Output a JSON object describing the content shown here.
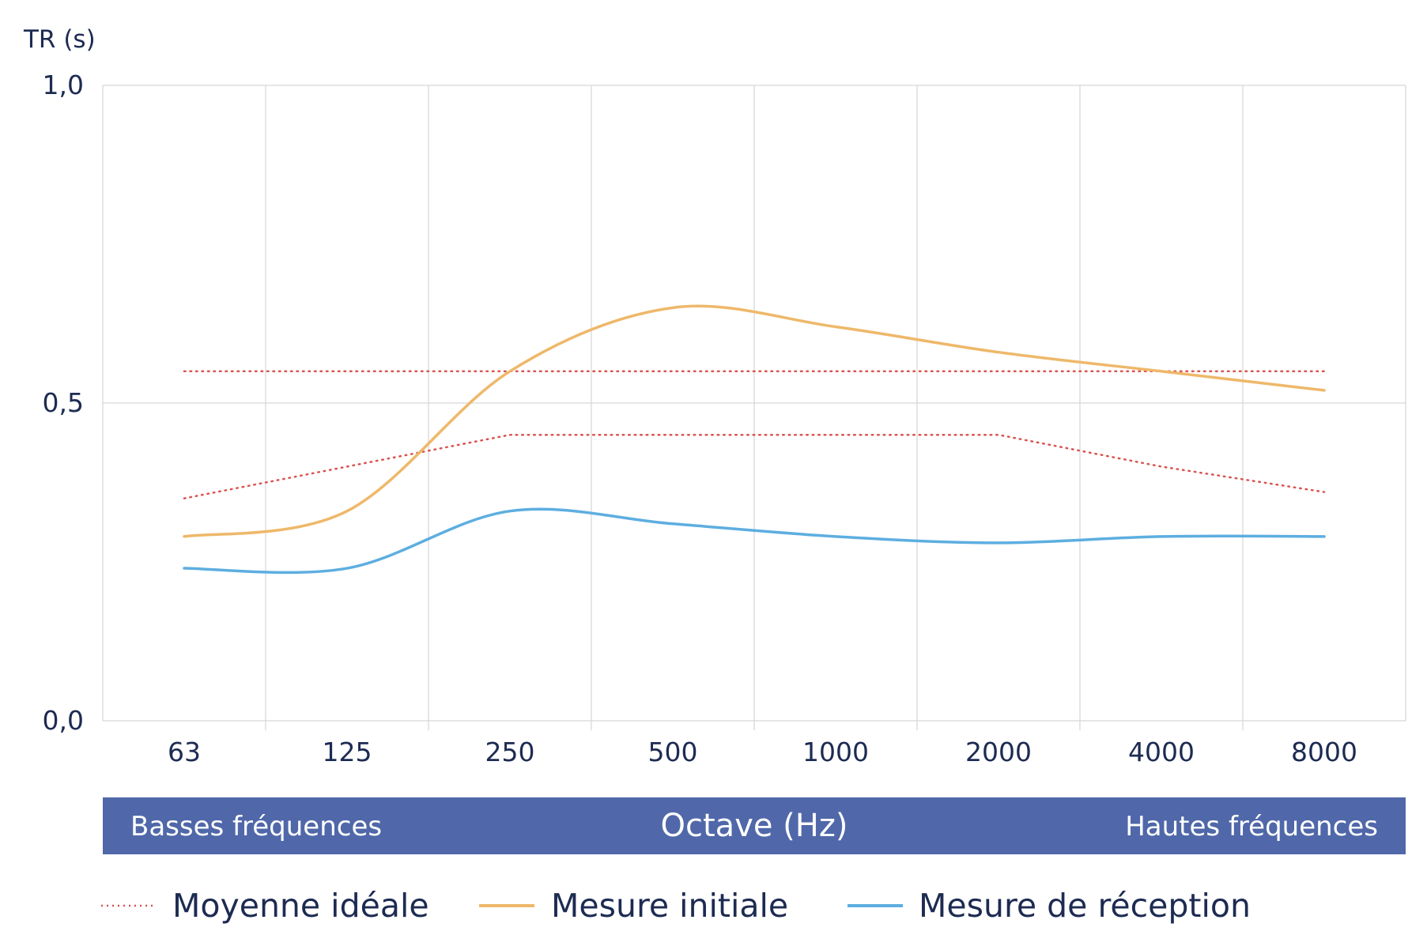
{
  "chart_data": {
    "type": "line",
    "ylabel": "TR (s)",
    "ylim": [
      0,
      1
    ],
    "yticks": [
      "0,0",
      "0,5",
      "1,0"
    ],
    "ytick_values": [
      0,
      0.5,
      1
    ],
    "categories": [
      "63",
      "125",
      "250",
      "500",
      "1000",
      "2000",
      "4000",
      "8000"
    ],
    "xlabel": "Octave (Hz)",
    "band_left": "Basses fréquences",
    "band_right": "Hautes fréquences",
    "grid": true,
    "legend_position": "bottom",
    "colors": {
      "ideal": "#d9534f",
      "initial": "#eeb86a",
      "reception": "#5daee0",
      "band": "#5068a9",
      "grid": "#d6d6d6",
      "text": "#1d2b52"
    },
    "series": [
      {
        "name": "Moyenne idéale",
        "style": "dotted",
        "values": [
          0.55,
          0.55,
          0.55,
          0.55,
          0.55,
          0.55,
          0.55,
          0.55
        ]
      },
      {
        "name": "Moyenne idéale",
        "style": "dotted",
        "legend": false,
        "values": [
          0.35,
          0.4,
          0.45,
          0.45,
          0.45,
          0.45,
          0.4,
          0.36
        ]
      },
      {
        "name": "Mesure initiale",
        "style": "solid",
        "values": [
          0.29,
          0.33,
          0.55,
          0.65,
          0.62,
          0.58,
          0.55,
          0.52
        ]
      },
      {
        "name": "Mesure de réception",
        "style": "solid",
        "values": [
          0.24,
          0.24,
          0.33,
          0.31,
          0.29,
          0.28,
          0.29,
          0.29
        ]
      }
    ]
  }
}
